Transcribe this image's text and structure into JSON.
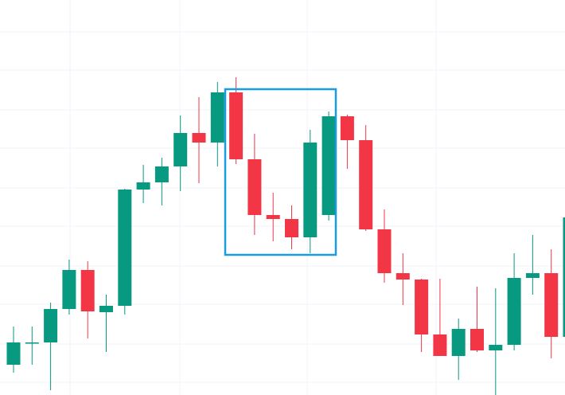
{
  "chart_data": {
    "type": "candlestick",
    "up_color": "#089981",
    "down_color": "#f23645",
    "ylim": [
      0,
      496
    ],
    "open": [
      38,
      65,
      66,
      108,
      157,
      104,
      112,
      258,
      267,
      287,
      329,
      317,
      380,
      296,
      226,
      221,
      198,
      226,
      350,
      320,
      208,
      153,
      145,
      76,
      49,
      83,
      56,
      63,
      147,
      153,
      73
    ],
    "high": [
      86,
      86,
      116,
      170,
      168,
      126,
      259,
      289,
      298,
      351,
      374,
      393,
      399,
      328,
      254,
      238,
      333,
      356,
      352,
      339,
      233,
      178,
      146,
      146,
      96,
      136,
      134,
      178,
      201,
      183,
      239
    ],
    "low": [
      28,
      38,
      6,
      101,
      71,
      54,
      101,
      241,
      238,
      256,
      266,
      287,
      290,
      201,
      193,
      183,
      178,
      219,
      284,
      206,
      141,
      113,
      54,
      49,
      19,
      54,
      0,
      56,
      126,
      46,
      48
    ],
    "close": [
      66,
      66,
      108,
      157,
      105,
      112,
      258,
      267,
      287,
      329,
      317,
      380,
      296,
      226,
      221,
      198,
      317,
      350,
      320,
      208,
      153,
      145,
      76,
      49,
      83,
      56,
      63,
      147,
      153,
      73,
      223
    ]
  }
}
